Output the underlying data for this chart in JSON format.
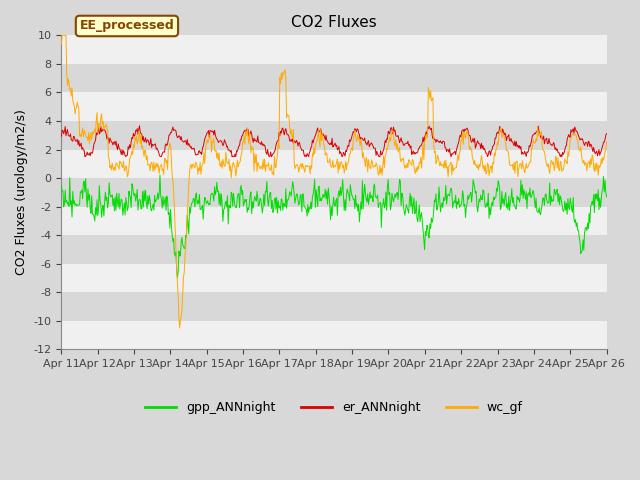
{
  "title": "CO2 Fluxes",
  "ylabel": "CO2 Fluxes (urology/m2/s)",
  "ylim": [
    -12,
    10
  ],
  "yticks": [
    -12,
    -10,
    -8,
    -6,
    -4,
    -2,
    0,
    2,
    4,
    6,
    8,
    10
  ],
  "xtick_labels": [
    "Apr 11",
    "Apr 12",
    "Apr 13",
    "Apr 14",
    "Apr 15",
    "Apr 16",
    "Apr 17",
    "Apr 18",
    "Apr 19",
    "Apr 20",
    "Apr 21",
    "Apr 22",
    "Apr 23",
    "Apr 24",
    "Apr 25",
    "Apr 26"
  ],
  "n_days": 15,
  "n_per_day": 48,
  "bg_color": "#d8d8d8",
  "plot_bg_color": "#d8d8d8",
  "white_band_color": "#f0f0f0",
  "line_green": "#00dd00",
  "line_red": "#dd0000",
  "line_orange": "#ffaa00",
  "legend_labels": [
    "gpp_ANNnight",
    "er_ANNnight",
    "wc_gf"
  ],
  "annotation_text": "EE_processed",
  "annotation_bg": "#ffffcc",
  "annotation_border": "#884400",
  "title_fontsize": 11,
  "label_fontsize": 9,
  "tick_fontsize": 8,
  "legend_fontsize": 9
}
